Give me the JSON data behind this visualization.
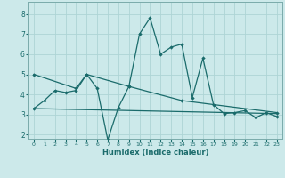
{
  "xlabel": "Humidex (Indice chaleur)",
  "xlim": [
    -0.5,
    23.5
  ],
  "ylim": [
    1.8,
    8.6
  ],
  "background_color": "#cce9ea",
  "grid_color": "#aed4d5",
  "line_color": "#1a6b6b",
  "line1_x": [
    0,
    1,
    2,
    3,
    4,
    5,
    6,
    7,
    8,
    9,
    10,
    11,
    12,
    13,
    14,
    15,
    16,
    17,
    18,
    19,
    20,
    21,
    22,
    23
  ],
  "line1_y": [
    3.3,
    3.7,
    4.2,
    4.1,
    4.2,
    5.0,
    4.3,
    1.75,
    3.35,
    4.4,
    7.0,
    7.8,
    6.0,
    6.35,
    6.5,
    3.85,
    5.8,
    3.5,
    3.05,
    3.1,
    3.2,
    2.85,
    3.1,
    2.9
  ],
  "line2_x": [
    0,
    4,
    5,
    9,
    14,
    23
  ],
  "line2_y": [
    5.0,
    4.3,
    5.0,
    4.4,
    3.7,
    3.1
  ],
  "line3_x": [
    0,
    23
  ],
  "line3_y": [
    3.3,
    3.05
  ],
  "yticks": [
    2,
    3,
    4,
    5,
    6,
    7,
    8
  ],
  "xticks": [
    0,
    1,
    2,
    3,
    4,
    5,
    6,
    7,
    8,
    9,
    10,
    11,
    12,
    13,
    14,
    15,
    16,
    17,
    18,
    19,
    20,
    21,
    22,
    23
  ]
}
